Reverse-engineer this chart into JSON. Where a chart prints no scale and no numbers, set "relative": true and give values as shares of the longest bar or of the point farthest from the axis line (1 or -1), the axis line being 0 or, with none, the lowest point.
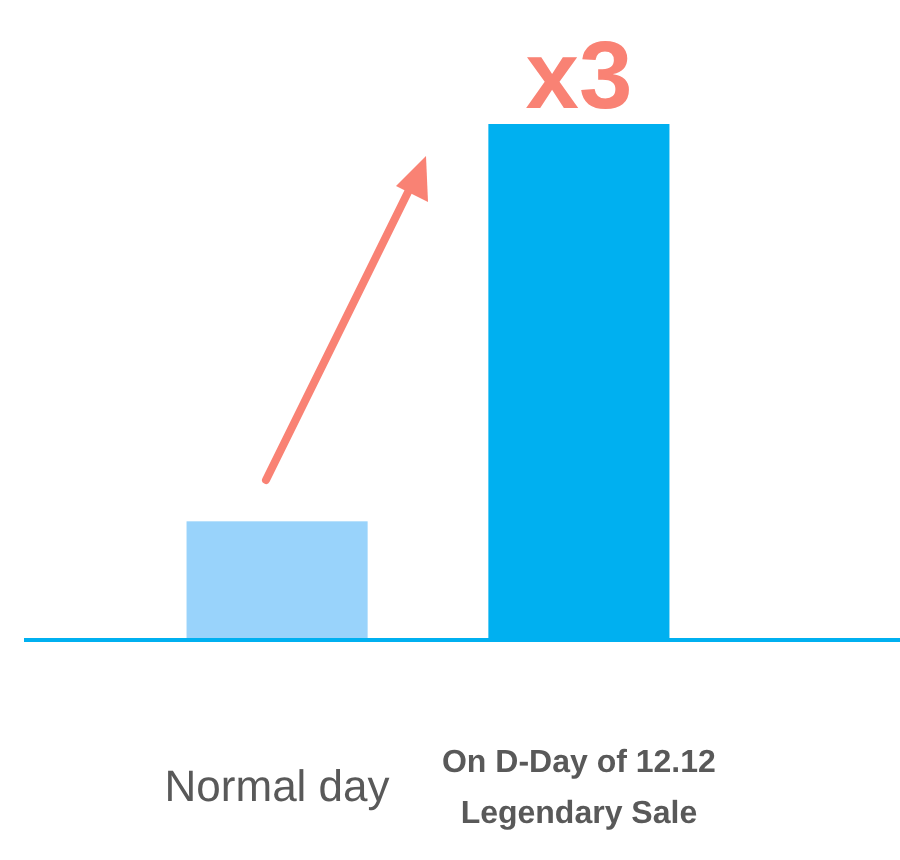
{
  "chart_data": {
    "type": "bar",
    "relative": true,
    "categories": [
      "Normal day",
      "On D-Day of 12.12 Legendary Sale"
    ],
    "values": [
      0.23,
      1
    ],
    "colors": [
      "#99d3fb",
      "#00b0f0"
    ],
    "annotations": [
      "x3"
    ]
  }
}
